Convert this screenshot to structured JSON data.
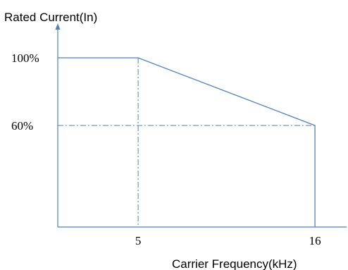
{
  "chart_data": {
    "type": "line",
    "ylabel": "Rated Current(In)",
    "xlabel": "Carrier Frequency(kHz)",
    "x_ticks": [
      {
        "value": 5,
        "label": "5"
      },
      {
        "value": 16,
        "label": "16"
      }
    ],
    "y_ticks": [
      {
        "value": 100,
        "label": "100%"
      },
      {
        "value": 60,
        "label": "60%"
      }
    ],
    "series": [
      {
        "points": [
          {
            "x": 0,
            "y": 100
          },
          {
            "x": 5,
            "y": 100
          },
          {
            "x": 16,
            "y": 60
          },
          {
            "x": 16,
            "y": 0
          }
        ]
      }
    ],
    "reference_lines": [
      {
        "orientation": "vertical",
        "x": 5
      },
      {
        "orientation": "horizontal",
        "y": 60
      }
    ],
    "xlim": [
      0,
      17.5
    ],
    "ylim": [
      0,
      145
    ],
    "grid": false,
    "colors": {
      "line": "#4f81bd",
      "axis": "#4f81bd",
      "text": "#000000"
    }
  }
}
